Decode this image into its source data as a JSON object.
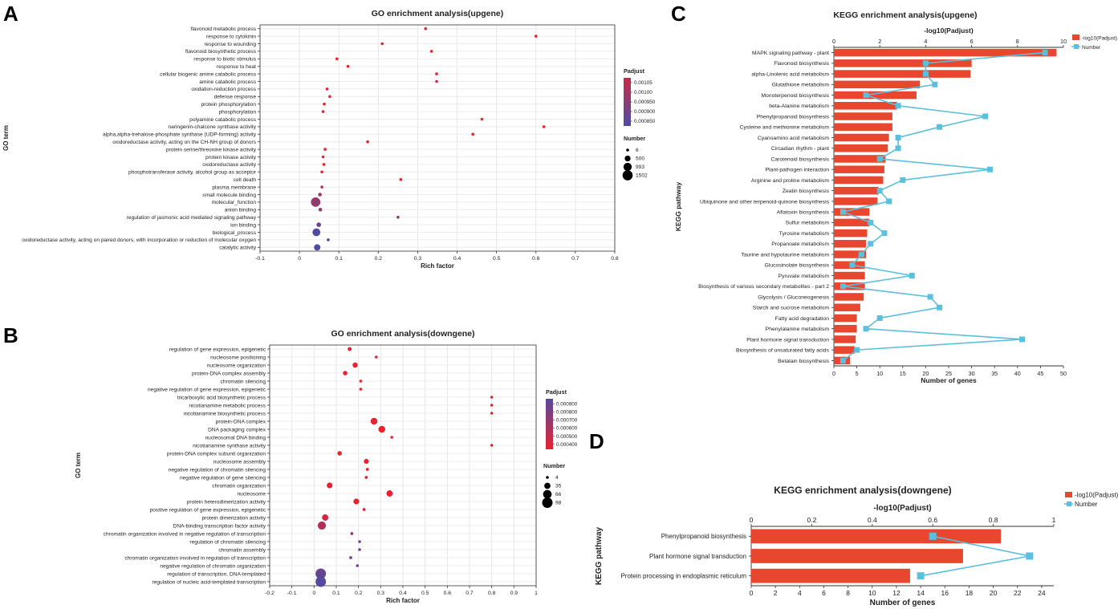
{
  "panel_labels": [
    "A",
    "B",
    "C",
    "D"
  ],
  "chart_data": [
    {
      "id": "A",
      "type": "scatter",
      "title": "GO enrichment analysis(upgene)",
      "xlabel": "Rich factor",
      "ylabel": "GO term",
      "xlim": [
        -0.1,
        0.8
      ],
      "xticks": [
        -0.1,
        0,
        0.1,
        0.2,
        0.3,
        0.4,
        0.5,
        0.6,
        0.7,
        0.8
      ],
      "xtick_labels": [
        "-0.1",
        "0",
        "0.1",
        "0.2",
        "0.3",
        "0.4",
        "0.5",
        "0.6",
        "0.7",
        "0.8"
      ],
      "color_legend": {
        "title": "Padjust",
        "tick_labels": [
          "0.00105",
          "0.00100",
          "0.000950",
          "0.000900",
          "0.000850"
        ],
        "low_color": "#e8222e",
        "high_color": "#4f4ba3",
        "t_top": 0.2,
        "t_bottom": 1.0
      },
      "size_legend": {
        "title": "Number",
        "labels": [
          "6",
          "500",
          "993",
          "1502"
        ],
        "values": [
          6,
          500,
          993,
          1502
        ]
      },
      "size_max": 1502,
      "terms": [
        "flavonoid metabolic process",
        "response to cytokinin",
        "response to wounding",
        "flavonoid biosynthetic process",
        "response to biotic stimulus",
        "response to heat",
        "cellular biogenic amine catabolic process",
        "amine catabolic process",
        "oxidation-reduction process",
        "defense response",
        "protein phosphorylation",
        "phosphorylation",
        "polyamine catabolic process",
        "naringenin-chalcone synthase activity",
        "alpha,alpha-trehalose-phosphate synthase (UDP-forming) activity",
        "oxidoreductase activity, acting on the CH-NH group of donors",
        "protein serine/threonine kinase activity",
        "protein kinase activity",
        "oxidoreductase activity",
        "phosphotransferase activity, alcohol group as acceptor",
        "cell death",
        "plasma membrane",
        "small molecule binding",
        "molecular_function",
        "anion binding",
        "regulation of jasmonic acid mediated signaling pathway",
        "ion binding",
        "biological_process",
        "oxidoreductase activity, acting on paired donors, with incorporation or reduction of molecular oxygen",
        "catalytic activity"
      ],
      "x": [
        0.32,
        0.6,
        0.21,
        0.335,
        0.095,
        0.123,
        0.348,
        0.348,
        0.07,
        0.077,
        0.063,
        0.06,
        0.463,
        0.62,
        0.44,
        0.173,
        0.065,
        0.06,
        0.062,
        0.057,
        0.257,
        0.057,
        0.052,
        0.041,
        0.053,
        0.25,
        0.049,
        0.043,
        0.073,
        0.045
      ],
      "size": [
        6,
        6,
        6,
        6,
        6,
        6,
        6,
        6,
        60,
        60,
        80,
        80,
        6,
        6,
        6,
        6,
        80,
        80,
        80,
        80,
        6,
        100,
        200,
        1300,
        200,
        6,
        300,
        900,
        10,
        600
      ],
      "t": [
        0.0,
        0.0,
        0.0,
        0.0,
        0.0,
        0.0,
        0.0,
        0.0,
        0.0,
        0.0,
        0.0,
        0.0,
        0.0,
        0.0,
        0.0,
        0.0,
        0.0,
        0.0,
        0.0,
        0.0,
        0.0,
        0.35,
        0.45,
        0.55,
        0.55,
        0.65,
        0.8,
        1.0,
        1.0,
        1.0
      ]
    },
    {
      "id": "B",
      "type": "scatter",
      "title": "GO enrichment analysis(downgene)",
      "xlabel": "Rich factor",
      "ylabel": "GO term",
      "xlim": [
        -0.2,
        1.0
      ],
      "xticks": [
        -0.2,
        -0.1,
        0,
        0.1,
        0.2,
        0.3,
        0.4,
        0.5,
        0.6,
        0.7,
        0.8,
        0.9,
        1.0
      ],
      "xtick_labels": [
        "-0.2",
        "-0.1",
        "0",
        "0.1",
        "0.2",
        "0.3",
        "0.4",
        "0.5",
        "0.6",
        "0.7",
        "0.8",
        "0.9",
        "1"
      ],
      "color_legend": {
        "title": "Padjust",
        "tick_labels": [
          "0.000900",
          "0.000800",
          "0.000700",
          "0.000600",
          "0.000500",
          "0.000400"
        ],
        "low_color": "#e8222e",
        "high_color": "#4f4ba3",
        "t_top": 0.95,
        "t_bottom": 0.0
      },
      "size_legend": {
        "title": "Number",
        "labels": [
          "4",
          "35",
          "66",
          "98"
        ],
        "values": [
          4,
          35,
          66,
          98
        ]
      },
      "size_max": 98,
      "terms": [
        "regulation of gene expression, epigenetic",
        "nucleosome positioning",
        "nucleosome organization",
        "protein-DNA complex assembly",
        "chromatin silencing",
        "negative regulation of gene expression, epigenetic",
        "tricarboxylic acid biosynthetic process",
        "nicotianamine metabolic process",
        "nicotianamine biosynthetic process",
        "protein-DNA complex",
        "DNA packaging complex",
        "nucleosomal DNA binding",
        "nicotianamine synthase activity",
        "protein-DNA complex subunit organization",
        "nucleosome assembly",
        "negative regulation of chromatin silencing",
        "negative regulation of gene silencing",
        "chromatin organization",
        "nucleosome",
        "protein heterodimerization activity",
        "positive regulation of gene expression, epigenetic",
        "protein dimerization activity",
        "DNA-binding transcription factor activity",
        "chromatin organization involved in negative regulation of transcription",
        "regulation of chromatin silencing",
        "chromatin assembly",
        "chromatin organization involved in regulation of transcription",
        "negative regulation of chromatin organization",
        "regulation of transcription, DNA-templated",
        "regulation of nucleic acid-templated transcription"
      ],
      "x": [
        0.16,
        0.28,
        0.185,
        0.14,
        0.21,
        0.21,
        0.8,
        0.8,
        0.8,
        0.27,
        0.305,
        0.35,
        0.8,
        0.115,
        0.235,
        0.24,
        0.235,
        0.07,
        0.34,
        0.19,
        0.225,
        0.05,
        0.035,
        0.17,
        0.205,
        0.205,
        0.165,
        0.195,
        0.03,
        0.03
      ],
      "size": [
        14,
        6,
        24,
        18,
        6,
        6,
        4,
        4,
        4,
        42,
        42,
        6,
        4,
        18,
        22,
        8,
        8,
        30,
        36,
        30,
        8,
        36,
        60,
        8,
        6,
        6,
        8,
        6,
        98,
        98
      ],
      "t": [
        0.0,
        0.0,
        0.0,
        0.0,
        0.0,
        0.0,
        0.0,
        0.0,
        0.0,
        0.0,
        0.0,
        0.0,
        0.0,
        0.0,
        0.0,
        0.0,
        0.0,
        0.0,
        0.0,
        0.0,
        0.05,
        0.15,
        0.35,
        0.6,
        0.8,
        0.8,
        0.8,
        0.8,
        0.85,
        0.95
      ]
    },
    {
      "id": "C",
      "type": "bar",
      "title": "KEGG enrichment analysis(upgene)",
      "xlabel": "Number of genes",
      "top_xlabel": "-log10(Padjust)",
      "ylabel": "KEGG pathway",
      "xlim": [
        0,
        50
      ],
      "xticks": [
        0,
        5,
        10,
        15,
        20,
        25,
        30,
        35,
        40,
        45,
        50
      ],
      "top_xlim": [
        0,
        10
      ],
      "top_xticks": [
        0,
        2,
        4,
        6,
        8,
        10
      ],
      "legend": [
        "-log10(Padjust)",
        "Number"
      ],
      "categories": [
        "MAPK signaling pathway - plant",
        "Flavonoid biosynthesis",
        "alpha-Linolenic acid metabolism",
        "Glutathione metabolism",
        "Monoterpenoid biosynthesis",
        "beta-Alanine metabolism",
        "Phenylpropanoid biosynthesis",
        "Cysteine and methionine metabolism",
        "Cyanoamino acid metabolism",
        "Circadian rhythm - plant",
        "Carotenoid biosynthesis",
        "Plant-pathogen interaction",
        "Arginine and proline metabolism",
        "Zeatin biosynthesis",
        "Ubiquinone and other terpenoid-quinone biosynthesis",
        "Aflatoxin biosynthesis",
        "Sulfur metabolism",
        "Tyrosine metabolism",
        "Propanoate metabolism",
        "Taurine and hypotaurine metabolism",
        "Glucosinolate biosynthesis",
        "Pyruvate metabolism",
        "Biosynthesis of various secondary metabolites - part 2",
        "Glycolysis / Gluconeogenesis",
        "Starch and sucrose metabolism",
        "Fatty acid degradation",
        "Phenylalanine metabolism",
        "Plant hormone signal transduction",
        "Biosynthesis of unsaturated fatty acids",
        "Betalain biosynthesis"
      ],
      "series": [
        {
          "name": "-log10(Padjust)",
          "kind": "bar",
          "axis": "top",
          "values": [
            9.7,
            6.0,
            5.95,
            3.75,
            3.6,
            2.75,
            2.55,
            2.55,
            2.4,
            2.35,
            2.25,
            2.2,
            2.15,
            1.95,
            1.9,
            1.55,
            1.55,
            1.45,
            1.4,
            1.4,
            1.35,
            1.35,
            1.35,
            1.3,
            1.15,
            1.0,
            1.0,
            0.95,
            0.9,
            0.7
          ]
        },
        {
          "name": "Number",
          "kind": "line",
          "axis": "bottom",
          "values": [
            46,
            20,
            20,
            22,
            7,
            14,
            33,
            23,
            14,
            14,
            10,
            34,
            15,
            10,
            12,
            2,
            8,
            11,
            8,
            6,
            4,
            17,
            2,
            21,
            23,
            10,
            7,
            41,
            5,
            2
          ]
        }
      ]
    },
    {
      "id": "D",
      "type": "bar",
      "title": "KEGG enrichment analysis(downgene)",
      "xlabel": "Number of genes",
      "top_xlabel": "-log10(Padjust)",
      "ylabel": "KEGG pathway",
      "xlim": [
        0,
        25
      ],
      "xticks": [
        0,
        2,
        4,
        6,
        8,
        10,
        12,
        14,
        16,
        18,
        20,
        22,
        24
      ],
      "top_xlim": [
        0,
        1
      ],
      "top_xticks": [
        0,
        0.2,
        0.4,
        0.6,
        0.8,
        1.0
      ],
      "top_xtick_labels": [
        "0",
        "0.2",
        "0.4",
        "0.6",
        "0.8",
        "1"
      ],
      "legend": [
        "-log10(Padjust)",
        "Number"
      ],
      "categories": [
        "Phenylpropanoid biosynthesis",
        "Plant hormone signal transduction",
        "Protein processing in endoplasmic reticulum"
      ],
      "series": [
        {
          "name": "-log10(Padjust)",
          "kind": "bar",
          "axis": "top",
          "values": [
            0.825,
            0.7,
            0.525
          ]
        },
        {
          "name": "Number",
          "kind": "line",
          "axis": "bottom",
          "values": [
            15,
            23,
            14
          ]
        }
      ]
    }
  ]
}
